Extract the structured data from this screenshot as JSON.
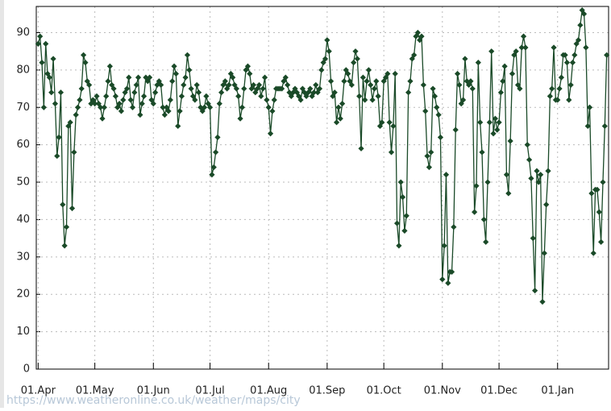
{
  "chart_data": {
    "type": "line",
    "color": "#1a4a28",
    "grid": true,
    "watermark": "https://www.weatheronline.co.uk/weather/maps/city",
    "xlim": [
      -1,
      302
    ],
    "ylim": [
      0,
      97
    ],
    "yticks": [
      0,
      10,
      20,
      30,
      40,
      50,
      60,
      70,
      80,
      90
    ],
    "xticks": [
      {
        "value": 0,
        "label": "01.Apr"
      },
      {
        "value": 30,
        "label": "01.May"
      },
      {
        "value": 61,
        "label": "01.Jun"
      },
      {
        "value": 91,
        "label": "01.Jul"
      },
      {
        "value": 122,
        "label": "01.Aug"
      },
      {
        "value": 153,
        "label": "01.Sep"
      },
      {
        "value": 183,
        "label": "01.Oct"
      },
      {
        "value": 214,
        "label": "01.Nov"
      },
      {
        "value": 244,
        "label": "01.Dec"
      },
      {
        "value": 275,
        "label": "01.Jan"
      }
    ],
    "x": [
      0,
      1,
      2,
      3,
      4,
      5,
      6,
      7,
      8,
      9,
      10,
      11,
      12,
      13,
      14,
      15,
      16,
      17,
      18,
      19,
      20,
      21,
      22,
      23,
      24,
      25,
      26,
      27,
      28,
      29,
      30,
      31,
      32,
      33,
      34,
      35,
      36,
      37,
      38,
      39,
      40,
      41,
      42,
      43,
      44,
      45,
      46,
      47,
      48,
      49,
      50,
      51,
      52,
      53,
      54,
      55,
      56,
      57,
      58,
      59,
      60,
      61,
      62,
      63,
      64,
      65,
      66,
      67,
      68,
      69,
      70,
      71,
      72,
      73,
      74,
      75,
      76,
      77,
      78,
      79,
      80,
      81,
      82,
      83,
      84,
      85,
      86,
      87,
      88,
      89,
      90,
      91,
      92,
      93,
      94,
      95,
      96,
      97,
      98,
      99,
      100,
      101,
      102,
      103,
      104,
      105,
      106,
      107,
      108,
      109,
      110,
      111,
      112,
      113,
      114,
      115,
      116,
      117,
      118,
      119,
      120,
      121,
      122,
      123,
      124,
      125,
      126,
      127,
      128,
      129,
      130,
      131,
      132,
      133,
      134,
      135,
      136,
      137,
      138,
      139,
      140,
      141,
      142,
      143,
      144,
      145,
      146,
      147,
      148,
      149,
      150,
      151,
      152,
      153,
      154,
      155,
      156,
      157,
      158,
      159,
      160,
      161,
      162,
      163,
      164,
      165,
      166,
      167,
      168,
      169,
      170,
      171,
      172,
      173,
      174,
      175,
      176,
      177,
      178,
      179,
      180,
      181,
      182,
      183,
      184,
      185,
      186,
      187,
      188,
      189,
      190,
      191,
      192,
      193,
      194,
      195,
      196,
      197,
      198,
      199,
      200,
      201,
      202,
      203,
      204,
      205,
      206,
      207,
      208,
      209,
      210,
      211,
      212,
      213,
      214,
      215,
      216,
      217,
      218,
      219,
      220,
      221,
      222,
      223,
      224,
      225,
      226,
      227,
      228,
      229,
      230,
      231,
      232,
      233,
      234,
      235,
      236,
      237,
      238,
      239,
      240,
      241,
      242,
      243,
      244,
      245,
      246,
      247,
      248,
      249,
      250,
      251,
      252,
      253,
      254,
      255,
      256,
      257,
      258,
      259,
      260,
      261,
      262,
      263,
      264,
      265,
      266,
      267,
      268,
      269,
      270,
      271,
      272,
      273,
      274,
      275,
      276,
      277,
      278,
      279,
      280,
      281,
      282,
      283,
      284,
      285,
      286,
      287,
      288,
      289,
      290,
      291,
      292,
      293,
      294,
      295,
      296,
      297,
      298,
      299,
      300,
      301
    ],
    "values": [
      87,
      89,
      82,
      70,
      87,
      79,
      78,
      74,
      83,
      71,
      57,
      62,
      74,
      44,
      33,
      38,
      65,
      66,
      43,
      58,
      68,
      70,
      72,
      75,
      84,
      82,
      77,
      76,
      71,
      72,
      71,
      73,
      71,
      70,
      67,
      70,
      73,
      77,
      81,
      76,
      75,
      73,
      70,
      71,
      69,
      72,
      74,
      75,
      78,
      72,
      70,
      74,
      76,
      78,
      68,
      71,
      73,
      78,
      77,
      78,
      72,
      71,
      74,
      76,
      77,
      76,
      70,
      68,
      70,
      69,
      72,
      77,
      81,
      79,
      65,
      69,
      73,
      76,
      78,
      84,
      80,
      75,
      73,
      72,
      76,
      74,
      70,
      69,
      70,
      73,
      71,
      70,
      52,
      54,
      58,
      62,
      71,
      74,
      76,
      77,
      75,
      76,
      79,
      78,
      76,
      75,
      73,
      67,
      70,
      75,
      80,
      81,
      79,
      75,
      76,
      74,
      75,
      76,
      73,
      75,
      78,
      72,
      70,
      63,
      69,
      72,
      75,
      75,
      75,
      75,
      77,
      78,
      76,
      74,
      73,
      74,
      75,
      74,
      73,
      72,
      75,
      74,
      73,
      74,
      75,
      73,
      74,
      76,
      74,
      75,
      80,
      82,
      83,
      88,
      85,
      77,
      73,
      74,
      66,
      70,
      67,
      71,
      77,
      80,
      79,
      77,
      76,
      82,
      85,
      83,
      73,
      59,
      78,
      72,
      77,
      80,
      76,
      72,
      75,
      77,
      73,
      65,
      66,
      77,
      78,
      79,
      66,
      58,
      65,
      79,
      39,
      33,
      50,
      46,
      37,
      41,
      74,
      77,
      83,
      84,
      89,
      90,
      88,
      89,
      76,
      69,
      57,
      54,
      58,
      75,
      73,
      70,
      68,
      62,
      24,
      33,
      52,
      23,
      26,
      26,
      38,
      64,
      79,
      76,
      71,
      72,
      83,
      77,
      76,
      77,
      75,
      42,
      49,
      82,
      66,
      58,
      40,
      34,
      50,
      66,
      85,
      63,
      67,
      64,
      66,
      74,
      77,
      81,
      52,
      47,
      61,
      79,
      84,
      85,
      76,
      75,
      86,
      89,
      86,
      60,
      56,
      51,
      35,
      21,
      53,
      50,
      52,
      18,
      31,
      44,
      53,
      73,
      75,
      86,
      72,
      72,
      75,
      78,
      84,
      84,
      82,
      72,
      76,
      82,
      84,
      87,
      88,
      92,
      96,
      95,
      86,
      65,
      70,
      47,
      31,
      48,
      48,
      42,
      34,
      50,
      65,
      84
    ]
  }
}
